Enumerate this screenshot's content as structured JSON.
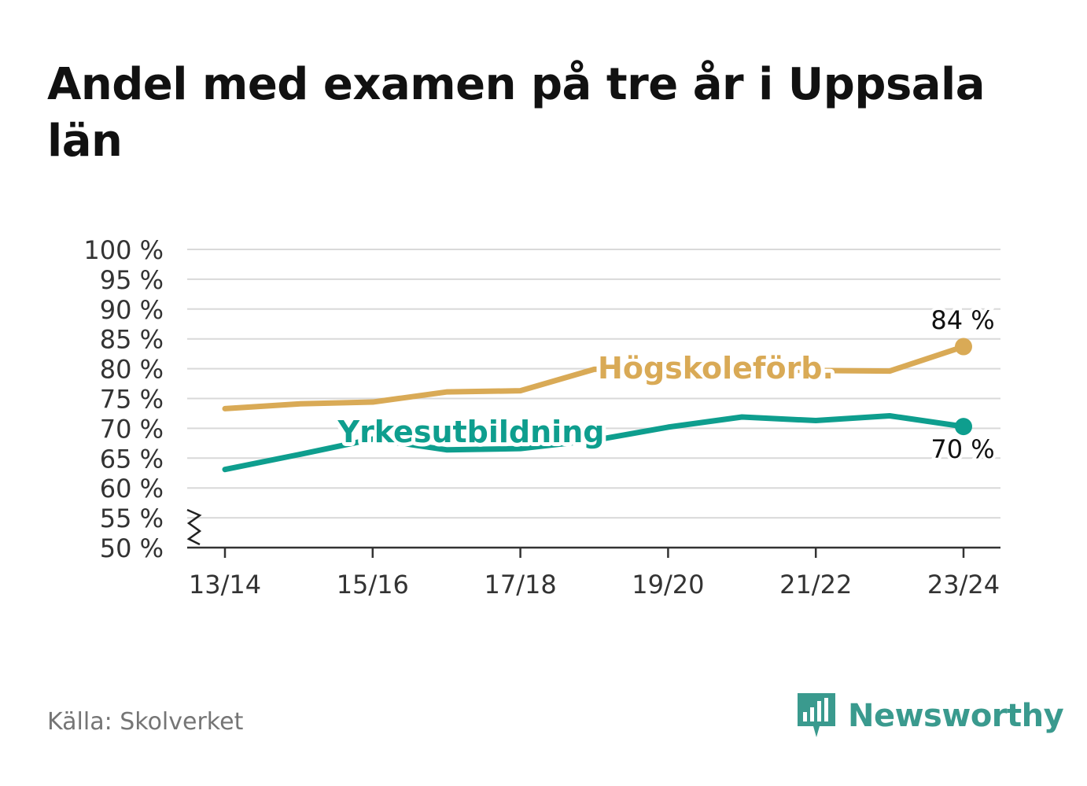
{
  "title": "Andel med examen på tre år i Uppsala län",
  "source": "Källa: Skolverket",
  "brand": {
    "name": "Newsworthy",
    "logo_icon": "newsworthy-logo-icon",
    "color": "#3a9a8e"
  },
  "chart_data": {
    "type": "line",
    "title": "Andel med examen på tre år i Uppsala län",
    "xlabel": "",
    "ylabel": "",
    "x": [
      "13/14",
      "14/15",
      "15/16",
      "16/17",
      "17/18",
      "18/19",
      "19/20",
      "20/21",
      "21/22",
      "22/23",
      "23/24"
    ],
    "x_tick_labels": [
      "13/14",
      "15/16",
      "17/18",
      "19/20",
      "21/22",
      "23/24"
    ],
    "y_tick_labels": [
      "100 %",
      "95 %",
      "90 %",
      "85 %",
      "80 %",
      "75 %",
      "70 %",
      "65 %",
      "60 %",
      "55 %",
      "50 %"
    ],
    "ylim": [
      50,
      100
    ],
    "y_ticks": [
      50,
      55,
      60,
      65,
      70,
      75,
      80,
      85,
      90,
      95,
      100
    ],
    "y_axis_break": true,
    "grid": true,
    "series": [
      {
        "name": "Högskoleförb.",
        "color": "#d9aa56",
        "values": [
          73.3,
          74.1,
          74.4,
          76.1,
          76.3,
          79.9,
          80.1,
          79.8,
          79.7,
          79.6,
          83.7
        ],
        "end_label": "84 %"
      },
      {
        "name": "Yrkesutbildning",
        "color": "#0e9e8e",
        "values": [
          63.1,
          65.6,
          68.2,
          66.4,
          66.6,
          68.0,
          70.2,
          71.9,
          71.3,
          72.1,
          70.3
        ],
        "end_label": "70 %"
      }
    ]
  }
}
